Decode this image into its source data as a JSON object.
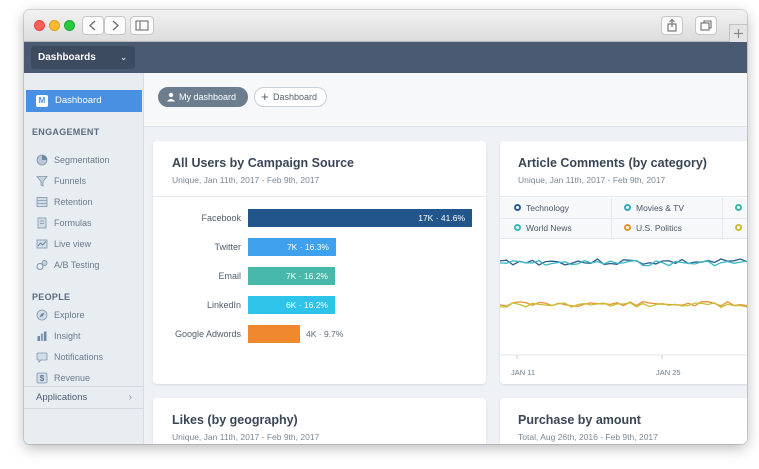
{
  "colors": {
    "appbar": "#4a5a72",
    "accent": "#4a90e2",
    "sidebar": "#e8edf2",
    "bar_facebook": "#23558d",
    "bar_twitter": "#3fa0ee",
    "bar_email": "#48b8aa",
    "bar_linkedin": "#2ec4ea",
    "bar_google": "#f0892d",
    "series_technology": "#2b5d8f",
    "series_world_news": "#37b8c4",
    "series_us_politics": "#e79430",
    "series_other": "#c8bf35"
  },
  "appbar": {
    "dashboard_select": "Dashboards"
  },
  "sidebar": {
    "active_badge": "M",
    "active_item": "Dashboard",
    "engagement_heading": "ENGAGEMENT",
    "engagement_items": [
      "Segmentation",
      "Funnels",
      "Retention",
      "Formulas",
      "Live view",
      "A/B Testing"
    ],
    "people_heading": "PEOPLE",
    "people_items": [
      "Explore",
      "Insight",
      "Notifications",
      "Revenue"
    ],
    "applications": "Applications"
  },
  "toolbar": {
    "my_dashboard": "My dashboard",
    "add_dashboard": "Dashboard"
  },
  "cards": {
    "users_by_campaign": {
      "title": "All Users by Campaign Source",
      "subtitle": "Unique, Jan 11th, 2017 - Feb 9th, 2017",
      "rows": [
        {
          "label": "Facebook",
          "value_text": "17K · 41.6%",
          "pct": 41.6
        },
        {
          "label": "Twitter",
          "value_text": "7K · 16.3%",
          "pct": 16.3
        },
        {
          "label": "Email",
          "value_text": "7K · 16.2%",
          "pct": 16.2
        },
        {
          "label": "LinkedIn",
          "value_text": "6K · 16.2%",
          "pct": 16.2
        },
        {
          "label": "Google Adwords",
          "value_text": "4K · 9.7%",
          "pct": 9.7
        }
      ]
    },
    "article_comments": {
      "title": "Article Comments (by category)",
      "subtitle": "Unique, Jan 11th, 2017 - Feb 9th, 2017",
      "legend": [
        "Technology",
        "Movies & TV",
        "World News",
        "U.S. Politics"
      ],
      "x_ticks": [
        "JAN 11",
        "JAN 25"
      ]
    },
    "likes": {
      "title": "Likes (by geography)",
      "subtitle": "Unique, Jan 11th, 2017 - Feb 9th, 2017"
    },
    "purchase": {
      "title": "Purchase by amount",
      "subtitle": "Total, Aug 26th, 2016 - Feb 9th, 2017"
    }
  }
}
